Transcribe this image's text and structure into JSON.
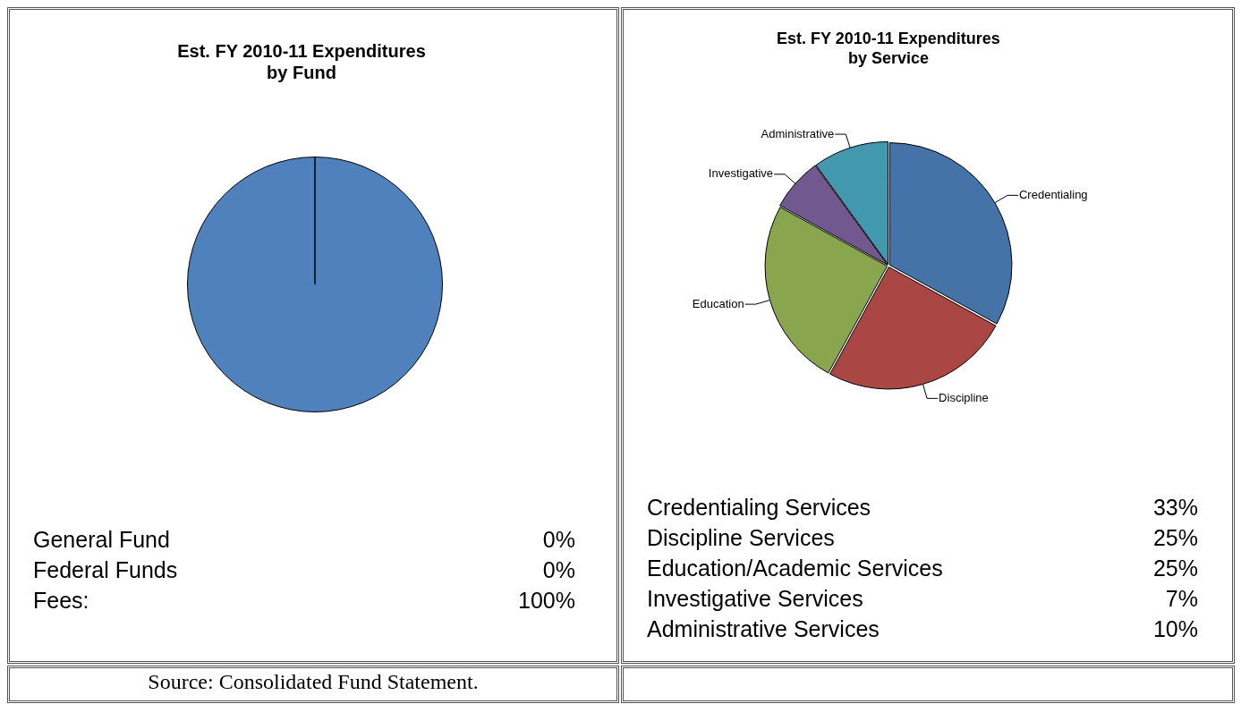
{
  "chart_data": [
    {
      "type": "pie",
      "title": "Est. FY 2010-11 Expenditures\nby Fund",
      "categories": [
        null,
        null,
        null
      ],
      "values": [
        0,
        0,
        100
      ],
      "colors": [
        "#c0504d",
        "#9bbb59",
        "#4f81bd"
      ],
      "annotations": [
        "General Fund",
        "0%",
        "Federal Funds",
        "0%",
        "Fees:",
        "100%",
        "Source: Consolidated Fund Statement."
      ]
    },
    {
      "type": "pie",
      "title": "Est. FY 2010-11 Expenditures\nby Service",
      "categories": [
        "Credentialing",
        "Discipline",
        "Education",
        "Investigative",
        "Administrative"
      ],
      "values": [
        33,
        25,
        25,
        7,
        10
      ],
      "colors": [
        "#4572a7",
        "#aa4643",
        "#89a54e",
        "#71588f",
        "#4198af"
      ],
      "annotations": [
        "Credentialing Services",
        "33%",
        "Discipline Services",
        "25%",
        "Education/Academic Services",
        "25%",
        "Investigative Services",
        "7%",
        "Administrative Services",
        "10%"
      ]
    }
  ]
}
